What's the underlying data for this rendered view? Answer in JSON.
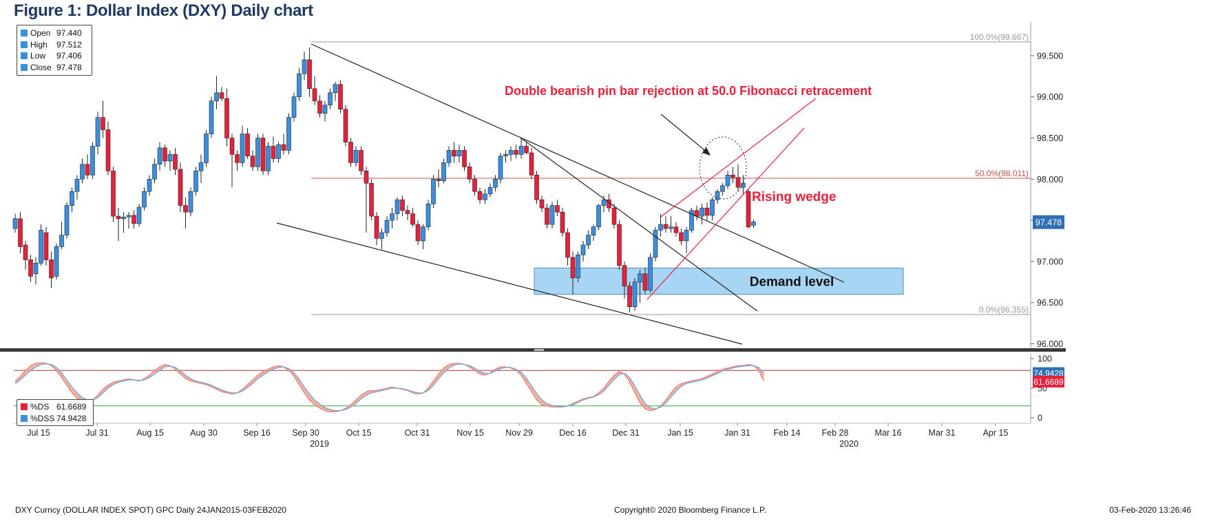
{
  "figure_title": "Figure 1: Dollar Index (DXY) Daily chart",
  "footer": {
    "left": "DXY Curncy (DOLLAR INDEX SPOT) GPC  Daily 24JAN2015-03FEB2020",
    "center": "Copyright© 2020 Bloomberg Finance L.P.",
    "right": "03-Feb-2020 13:26:46"
  },
  "colors": {
    "up": "#3a8fe0",
    "down": "#e8203c",
    "fib": "#c0504d",
    "demand_fill": "#a9d5f5",
    "demand_border": "#4a90c8",
    "annotation": "#e8203c",
    "last_price_bg": "#2f6fb8",
    "ds_line": "#f08070",
    "dss_line": "#6aa8e0",
    "band_fill": "#f2a58f",
    "upper_band": "#b03030",
    "lower_band": "#20b040"
  },
  "legend": {
    "open_label": "Open",
    "open_value": "97.440",
    "high_label": "High",
    "high_value": "97.512",
    "low_label": "Low",
    "low_value": "97.406",
    "close_label": "Close",
    "close_value": "97.478"
  },
  "stoch_legend": {
    "ds_label": "%DS",
    "ds_value": "61.6689",
    "dss_label": "%DSS",
    "dss_value": "74.9428"
  },
  "annotations": {
    "pin_bar": "Double bearish pin bar rejection at 50.0 Fibonacci retracement",
    "rising_wedge": "Rising wedge",
    "demand": "Demand level"
  },
  "chart_data": [
    {
      "type": "candlestick",
      "series": "DXY",
      "yticks": [
        96.0,
        96.5,
        97.0,
        97.5,
        98.0,
        98.5,
        99.0,
        99.5
      ],
      "ytick_labels": [
        "96.000",
        "96.500",
        "97.000",
        "97.500",
        "98.000",
        "98.500",
        "99.000",
        "99.500"
      ],
      "x_tick_labels": [
        "Jul 15",
        "Jul 31",
        "Aug 15",
        "Aug 30",
        "Sep 16",
        "Sep 30",
        "Oct 15",
        "Oct 31",
        "Nov 15",
        "Nov 29",
        "Dec 16",
        "Dec 31",
        "Jan 15",
        "Jan 31",
        "Feb 14",
        "Feb 28",
        "Mar 16",
        "Mar 31",
        "Apr 15"
      ],
      "year_labels": [
        {
          "label": "2019",
          "under": "Sep 30"
        },
        {
          "label": "2020",
          "under": "Feb 28"
        }
      ],
      "last_price_label": "97.478",
      "fibonacci": [
        {
          "label": "100.0%(99.667)",
          "value": 99.667
        },
        {
          "label": "50.0%(98.011)",
          "value": 98.011
        },
        {
          "label": "0.0%(96.355)",
          "value": 96.355
        }
      ],
      "demand_zone": {
        "low": 96.6,
        "high": 96.92
      },
      "candles": [
        [
          97.4,
          97.58,
          97.35,
          97.52
        ],
        [
          97.52,
          97.6,
          97.1,
          97.18
        ],
        [
          97.2,
          97.25,
          96.9,
          97.02
        ],
        [
          97.02,
          97.08,
          96.75,
          96.82
        ],
        [
          96.85,
          97.05,
          96.72,
          96.98
        ],
        [
          96.98,
          97.45,
          96.95,
          97.38
        ],
        [
          97.35,
          97.42,
          96.95,
          97.02
        ],
        [
          97.02,
          97.12,
          96.68,
          96.8
        ],
        [
          96.82,
          97.22,
          96.78,
          97.18
        ],
        [
          97.18,
          97.48,
          97.15,
          97.32
        ],
        [
          97.32,
          97.72,
          97.28,
          97.68
        ],
        [
          97.68,
          97.9,
          97.6,
          97.85
        ],
        [
          97.85,
          98.05,
          97.75,
          98.0
        ],
        [
          98.0,
          98.25,
          97.95,
          98.18
        ],
        [
          98.18,
          98.3,
          98.0,
          98.05
        ],
        [
          98.05,
          98.45,
          98.0,
          98.4
        ],
        [
          98.4,
          98.82,
          98.3,
          98.75
        ],
        [
          98.75,
          98.95,
          98.5,
          98.6
        ],
        [
          98.6,
          98.7,
          98.05,
          98.1
        ],
        [
          98.1,
          98.15,
          97.48,
          97.55
        ],
        [
          97.55,
          97.65,
          97.25,
          97.52
        ],
        [
          97.52,
          97.6,
          97.35,
          97.54
        ],
        [
          97.54,
          97.6,
          97.4,
          97.56
        ],
        [
          97.56,
          97.62,
          97.4,
          97.46
        ],
        [
          97.46,
          97.7,
          97.42,
          97.66
        ],
        [
          97.66,
          97.9,
          97.62,
          97.85
        ],
        [
          97.85,
          98.05,
          97.8,
          98.0
        ],
        [
          98.0,
          98.25,
          97.95,
          98.18
        ],
        [
          98.18,
          98.45,
          98.1,
          98.38
        ],
        [
          98.38,
          98.42,
          98.15,
          98.22
        ],
        [
          98.22,
          98.35,
          98.1,
          98.3
        ],
        [
          98.3,
          98.38,
          98.05,
          98.12
        ],
        [
          98.12,
          98.2,
          97.6,
          97.68
        ],
        [
          97.68,
          97.78,
          97.4,
          97.6
        ],
        [
          97.6,
          97.9,
          97.55,
          97.85
        ],
        [
          97.85,
          98.15,
          97.8,
          98.1
        ],
        [
          98.1,
          98.3,
          97.95,
          98.2
        ],
        [
          98.2,
          98.6,
          98.15,
          98.55
        ],
        [
          98.55,
          99.0,
          98.5,
          98.95
        ],
        [
          98.95,
          99.25,
          98.85,
          99.05
        ],
        [
          99.05,
          99.12,
          98.95,
          98.98
        ],
        [
          98.98,
          99.1,
          98.4,
          98.5
        ],
        [
          98.5,
          98.55,
          97.9,
          98.3
        ],
        [
          98.3,
          98.35,
          98.1,
          98.2
        ],
        [
          98.2,
          98.65,
          98.15,
          98.55
        ],
        [
          98.55,
          98.62,
          98.25,
          98.28
        ],
        [
          98.28,
          98.35,
          98.1,
          98.15
        ],
        [
          98.15,
          98.55,
          98.1,
          98.5
        ],
        [
          98.5,
          98.55,
          98.05,
          98.1
        ],
        [
          98.1,
          98.45,
          98.05,
          98.4
        ],
        [
          98.4,
          98.52,
          98.2,
          98.25
        ],
        [
          98.25,
          98.45,
          98.2,
          98.42
        ],
        [
          98.42,
          98.55,
          98.3,
          98.35
        ],
        [
          98.35,
          98.8,
          98.3,
          98.75
        ],
        [
          98.75,
          99.05,
          98.7,
          99.0
        ],
        [
          99.0,
          99.35,
          98.95,
          99.28
        ],
        [
          99.28,
          99.55,
          99.2,
          99.45
        ],
        [
          99.45,
          99.6,
          99.0,
          99.1
        ],
        [
          99.1,
          99.25,
          98.9,
          98.95
        ],
        [
          98.95,
          99.02,
          98.75,
          98.8
        ],
        [
          98.8,
          98.95,
          98.7,
          98.9
        ],
        [
          98.9,
          99.1,
          98.85,
          99.05
        ],
        [
          99.05,
          99.18,
          98.95,
          99.15
        ],
        [
          99.15,
          99.2,
          98.8,
          98.85
        ],
        [
          98.85,
          98.9,
          98.4,
          98.45
        ],
        [
          98.45,
          98.5,
          98.15,
          98.2
        ],
        [
          98.2,
          98.4,
          98.15,
          98.35
        ],
        [
          98.35,
          98.4,
          98.05,
          98.1
        ],
        [
          98.1,
          98.15,
          97.35,
          97.95
        ],
        [
          97.95,
          98.0,
          97.5,
          97.55
        ],
        [
          97.55,
          97.6,
          97.2,
          97.28
        ],
        [
          97.28,
          97.4,
          97.15,
          97.35
        ],
        [
          97.35,
          97.55,
          97.3,
          97.5
        ],
        [
          97.5,
          97.65,
          97.4,
          97.58
        ],
        [
          97.58,
          97.78,
          97.5,
          97.75
        ],
        [
          97.75,
          97.8,
          97.55,
          97.62
        ],
        [
          97.62,
          97.68,
          97.5,
          97.58
        ],
        [
          97.58,
          97.65,
          97.42,
          97.45
        ],
        [
          97.45,
          97.5,
          97.2,
          97.25
        ],
        [
          97.25,
          97.45,
          97.15,
          97.42
        ],
        [
          97.42,
          97.75,
          97.38,
          97.7
        ],
        [
          97.7,
          98.05,
          97.65,
          98.0
        ],
        [
          98.0,
          98.12,
          97.9,
          97.98
        ],
        [
          97.98,
          98.25,
          97.95,
          98.2
        ],
        [
          98.2,
          98.4,
          98.15,
          98.35
        ],
        [
          98.35,
          98.45,
          98.2,
          98.28
        ],
        [
          98.28,
          98.42,
          98.2,
          98.35
        ],
        [
          98.35,
          98.4,
          98.1,
          98.15
        ],
        [
          98.15,
          98.2,
          97.95,
          98.0
        ],
        [
          98.0,
          98.05,
          97.8,
          97.85
        ],
        [
          97.85,
          97.9,
          97.7,
          97.75
        ],
        [
          97.75,
          97.88,
          97.7,
          97.82
        ],
        [
          97.82,
          97.95,
          97.78,
          97.9
        ],
        [
          97.9,
          98.05,
          97.85,
          98.0
        ],
        [
          98.0,
          98.32,
          97.95,
          98.28
        ],
        [
          98.28,
          98.35,
          98.2,
          98.3
        ],
        [
          98.3,
          98.4,
          98.22,
          98.35
        ],
        [
          98.35,
          98.42,
          98.25,
          98.3
        ],
        [
          98.3,
          98.5,
          98.25,
          98.4
        ],
        [
          98.4,
          98.45,
          98.3,
          98.32
        ],
        [
          98.32,
          98.38,
          98.0,
          98.05
        ],
        [
          98.05,
          98.1,
          97.7,
          97.75
        ],
        [
          97.75,
          97.8,
          97.6,
          97.65
        ],
        [
          97.65,
          97.7,
          97.4,
          97.45
        ],
        [
          97.45,
          97.72,
          97.4,
          97.68
        ],
        [
          97.68,
          97.75,
          97.55,
          97.6
        ],
        [
          97.6,
          97.65,
          97.3,
          97.35
        ],
        [
          97.35,
          97.4,
          96.95,
          97.05
        ],
        [
          97.05,
          97.12,
          96.6,
          96.8
        ],
        [
          96.8,
          97.12,
          96.75,
          97.08
        ],
        [
          97.08,
          97.25,
          97.0,
          97.2
        ],
        [
          97.2,
          97.38,
          97.15,
          97.32
        ],
        [
          97.32,
          97.45,
          97.25,
          97.42
        ],
        [
          97.42,
          97.7,
          97.38,
          97.68
        ],
        [
          97.68,
          97.8,
          97.6,
          97.75
        ],
        [
          97.75,
          97.82,
          97.6,
          97.65
        ],
        [
          97.65,
          97.7,
          97.4,
          97.45
        ],
        [
          97.45,
          97.5,
          96.9,
          96.95
        ],
        [
          96.95,
          97.0,
          96.55,
          96.7
        ],
        [
          96.7,
          96.75,
          96.38,
          96.45
        ],
        [
          96.45,
          96.8,
          96.4,
          96.75
        ],
        [
          96.75,
          96.9,
          96.5,
          96.85
        ],
        [
          96.85,
          96.92,
          96.6,
          96.65
        ],
        [
          96.65,
          97.1,
          96.62,
          97.05
        ],
        [
          97.05,
          97.42,
          97.0,
          97.38
        ],
        [
          97.38,
          97.58,
          97.3,
          97.45
        ],
        [
          97.45,
          97.55,
          97.35,
          97.4
        ],
        [
          97.4,
          97.55,
          97.35,
          97.42
        ],
        [
          97.42,
          97.48,
          97.3,
          97.35
        ],
        [
          97.35,
          97.4,
          97.2,
          97.25
        ],
        [
          97.25,
          97.42,
          97.1,
          97.38
        ],
        [
          97.38,
          97.65,
          97.35,
          97.62
        ],
        [
          97.62,
          97.68,
          97.5,
          97.55
        ],
        [
          97.55,
          97.7,
          97.45,
          97.65
        ],
        [
          97.65,
          97.72,
          97.5,
          97.56
        ],
        [
          97.56,
          97.78,
          97.5,
          97.75
        ],
        [
          97.75,
          97.88,
          97.7,
          97.85
        ],
        [
          97.85,
          97.95,
          97.8,
          97.92
        ],
        [
          97.92,
          98.1,
          97.88,
          98.05
        ],
        [
          98.05,
          98.15,
          97.95,
          98.02
        ],
        [
          98.02,
          98.18,
          97.85,
          97.9
        ],
        [
          97.9,
          98.05,
          97.82,
          97.95
        ],
        [
          97.85,
          97.88,
          97.4,
          97.42
        ],
        [
          97.44,
          97.51,
          97.41,
          97.48
        ]
      ]
    },
    {
      "type": "line",
      "series_names": [
        "%DS",
        "%DSS"
      ],
      "yticks": [
        0,
        50,
        100
      ],
      "ytick_labels": [
        "0",
        "50",
        "100"
      ],
      "upper_band": 80,
      "lower_band": 20,
      "ds_current": 61.6689,
      "dss_current": 74.9428,
      "ds": [
        62,
        70,
        80,
        88,
        92,
        93,
        92,
        88,
        80,
        68,
        55,
        42,
        33,
        28,
        26,
        30,
        38,
        48,
        55,
        60,
        62,
        64,
        66,
        64,
        62,
        66,
        72,
        80,
        86,
        90,
        88,
        82,
        74,
        66,
        62,
        60,
        58,
        56,
        52,
        48,
        44,
        42,
        40,
        42,
        48,
        56,
        64,
        72,
        78,
        82,
        86,
        88,
        86,
        80,
        70,
        56,
        42,
        30,
        22,
        16,
        12,
        10,
        10,
        12,
        16,
        22,
        30,
        38,
        44,
        46,
        46,
        48,
        50,
        52,
        50,
        48,
        46,
        42,
        40,
        42,
        50,
        62,
        74,
        84,
        90,
        92,
        92,
        90,
        86,
        80,
        74,
        72,
        76,
        82,
        86,
        86,
        84,
        80,
        72,
        58,
        44,
        30,
        22,
        20,
        18,
        18,
        18,
        20,
        24,
        28,
        32,
        34,
        36,
        42,
        50,
        62,
        72,
        78,
        74,
        60,
        42,
        25,
        15,
        12,
        14,
        20,
        30,
        42,
        52,
        58,
        60,
        62,
        64,
        66,
        70,
        74,
        78,
        82,
        84,
        86,
        88,
        88,
        90,
        88,
        80,
        62
      ],
      "dss": [
        58,
        64,
        72,
        80,
        86,
        90,
        91,
        90,
        85,
        76,
        64,
        52,
        42,
        34,
        30,
        30,
        34,
        42,
        50,
        56,
        60,
        62,
        64,
        64,
        63,
        64,
        68,
        74,
        80,
        86,
        87,
        85,
        79,
        72,
        66,
        62,
        60,
        58,
        55,
        51,
        47,
        44,
        42,
        42,
        45,
        51,
        58,
        66,
        72,
        78,
        82,
        85,
        86,
        83,
        76,
        65,
        52,
        40,
        30,
        23,
        17,
        14,
        12,
        12,
        14,
        18,
        24,
        32,
        38,
        42,
        44,
        46,
        48,
        50,
        50,
        49,
        47,
        44,
        42,
        42,
        46,
        55,
        66,
        76,
        84,
        89,
        91,
        90,
        88,
        84,
        78,
        75,
        75,
        79,
        83,
        85,
        85,
        82,
        77,
        67,
        54,
        41,
        30,
        24,
        21,
        19,
        19,
        20,
        22,
        26,
        30,
        33,
        35,
        39,
        45,
        55,
        65,
        73,
        75,
        68,
        54,
        38,
        24,
        17,
        15,
        18,
        25,
        35,
        45,
        53,
        58,
        60,
        62,
        64,
        67,
        71,
        75,
        79,
        82,
        84,
        86,
        87,
        88,
        88,
        85,
        75
      ]
    }
  ]
}
